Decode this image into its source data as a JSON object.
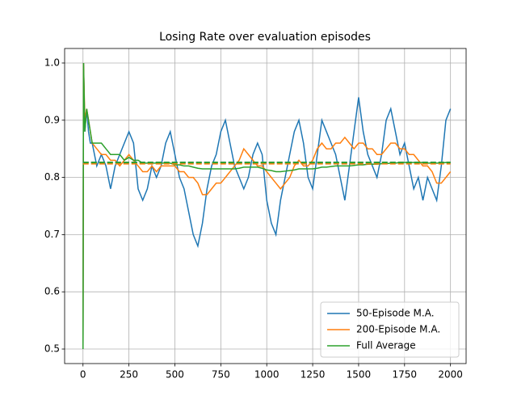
{
  "chart_data": {
    "type": "line",
    "title": "Losing Rate over evaluation episodes",
    "x": [
      0,
      3,
      10,
      20,
      30,
      40,
      50,
      75,
      100,
      125,
      150,
      175,
      200,
      225,
      250,
      275,
      300,
      325,
      350,
      375,
      400,
      425,
      450,
      475,
      500,
      525,
      550,
      575,
      600,
      625,
      650,
      675,
      700,
      725,
      750,
      775,
      800,
      825,
      850,
      875,
      900,
      925,
      950,
      975,
      1000,
      1025,
      1050,
      1075,
      1100,
      1125,
      1150,
      1175,
      1200,
      1225,
      1250,
      1275,
      1300,
      1325,
      1350,
      1375,
      1400,
      1425,
      1450,
      1475,
      1500,
      1525,
      1550,
      1575,
      1600,
      1625,
      1650,
      1675,
      1700,
      1725,
      1750,
      1775,
      1800,
      1825,
      1850,
      1875,
      1900,
      1925,
      1950,
      1975,
      2000
    ],
    "series": [
      {
        "name": "50-Episode M.A.",
        "color": "#1f77b4",
        "values": [
          0.5,
          1.0,
          0.88,
          0.92,
          0.88,
          0.86,
          0.86,
          0.82,
          0.84,
          0.82,
          0.78,
          0.82,
          0.84,
          0.86,
          0.88,
          0.86,
          0.78,
          0.76,
          0.78,
          0.82,
          0.8,
          0.82,
          0.86,
          0.88,
          0.84,
          0.8,
          0.78,
          0.74,
          0.7,
          0.68,
          0.72,
          0.78,
          0.82,
          0.84,
          0.88,
          0.9,
          0.86,
          0.82,
          0.8,
          0.78,
          0.8,
          0.84,
          0.86,
          0.84,
          0.76,
          0.72,
          0.7,
          0.76,
          0.8,
          0.84,
          0.88,
          0.9,
          0.86,
          0.8,
          0.78,
          0.84,
          0.9,
          0.88,
          0.86,
          0.84,
          0.8,
          0.76,
          0.82,
          0.88,
          0.94,
          0.88,
          0.84,
          0.82,
          0.8,
          0.84,
          0.9,
          0.92,
          0.88,
          0.84,
          0.86,
          0.82,
          0.78,
          0.8,
          0.76,
          0.8,
          0.78,
          0.76,
          0.82,
          0.9,
          0.92
        ]
      },
      {
        "name": "200-Episode M.A.",
        "color": "#ff7f0e",
        "values": [
          0.5,
          1.0,
          0.9,
          0.92,
          0.9,
          0.88,
          0.86,
          0.85,
          0.84,
          0.84,
          0.83,
          0.83,
          0.82,
          0.83,
          0.84,
          0.83,
          0.82,
          0.81,
          0.81,
          0.82,
          0.81,
          0.82,
          0.82,
          0.82,
          0.82,
          0.81,
          0.81,
          0.8,
          0.8,
          0.79,
          0.77,
          0.77,
          0.78,
          0.79,
          0.79,
          0.8,
          0.81,
          0.82,
          0.83,
          0.85,
          0.84,
          0.83,
          0.82,
          0.82,
          0.81,
          0.8,
          0.79,
          0.78,
          0.79,
          0.8,
          0.82,
          0.83,
          0.82,
          0.82,
          0.83,
          0.85,
          0.86,
          0.85,
          0.85,
          0.86,
          0.86,
          0.87,
          0.86,
          0.85,
          0.86,
          0.86,
          0.85,
          0.85,
          0.84,
          0.84,
          0.85,
          0.86,
          0.86,
          0.85,
          0.85,
          0.84,
          0.84,
          0.83,
          0.82,
          0.82,
          0.81,
          0.79,
          0.79,
          0.8,
          0.81
        ]
      },
      {
        "name": "Full Average",
        "color": "#2ca02c",
        "values": [
          0.5,
          1.0,
          0.88,
          0.92,
          0.9,
          0.88,
          0.86,
          0.86,
          0.86,
          0.85,
          0.84,
          0.84,
          0.84,
          0.83,
          0.835,
          0.83,
          0.83,
          0.825,
          0.825,
          0.825,
          0.825,
          0.825,
          0.825,
          0.825,
          0.822,
          0.822,
          0.82,
          0.82,
          0.818,
          0.816,
          0.815,
          0.815,
          0.815,
          0.815,
          0.815,
          0.815,
          0.815,
          0.815,
          0.816,
          0.818,
          0.818,
          0.818,
          0.818,
          0.816,
          0.813,
          0.812,
          0.81,
          0.81,
          0.811,
          0.812,
          0.813,
          0.815,
          0.815,
          0.815,
          0.815,
          0.816,
          0.818,
          0.818,
          0.819,
          0.82,
          0.82,
          0.82,
          0.82,
          0.821,
          0.822,
          0.822,
          0.823,
          0.823,
          0.823,
          0.824,
          0.824,
          0.825,
          0.825,
          0.826,
          0.826,
          0.826,
          0.826,
          0.826,
          0.826,
          0.825,
          0.825,
          0.825,
          0.825,
          0.826,
          0.826
        ]
      }
    ],
    "hlines": [
      {
        "value": 0.826,
        "color": "#1f77b4"
      },
      {
        "value": 0.824,
        "color": "#ff7f0e"
      },
      {
        "value": 0.826,
        "color": "#2ca02c"
      }
    ],
    "xlim": [
      -100,
      2085
    ],
    "ylim": [
      0.4746,
      1.0254
    ],
    "xticks": [
      0,
      250,
      500,
      750,
      1000,
      1250,
      1500,
      1750,
      2000
    ],
    "yticks": [
      0.5,
      0.6,
      0.7,
      0.8,
      0.9,
      {
        "value": 1,
        "label": "1.0"
      }
    ],
    "grid": true,
    "legend": "lower right"
  }
}
